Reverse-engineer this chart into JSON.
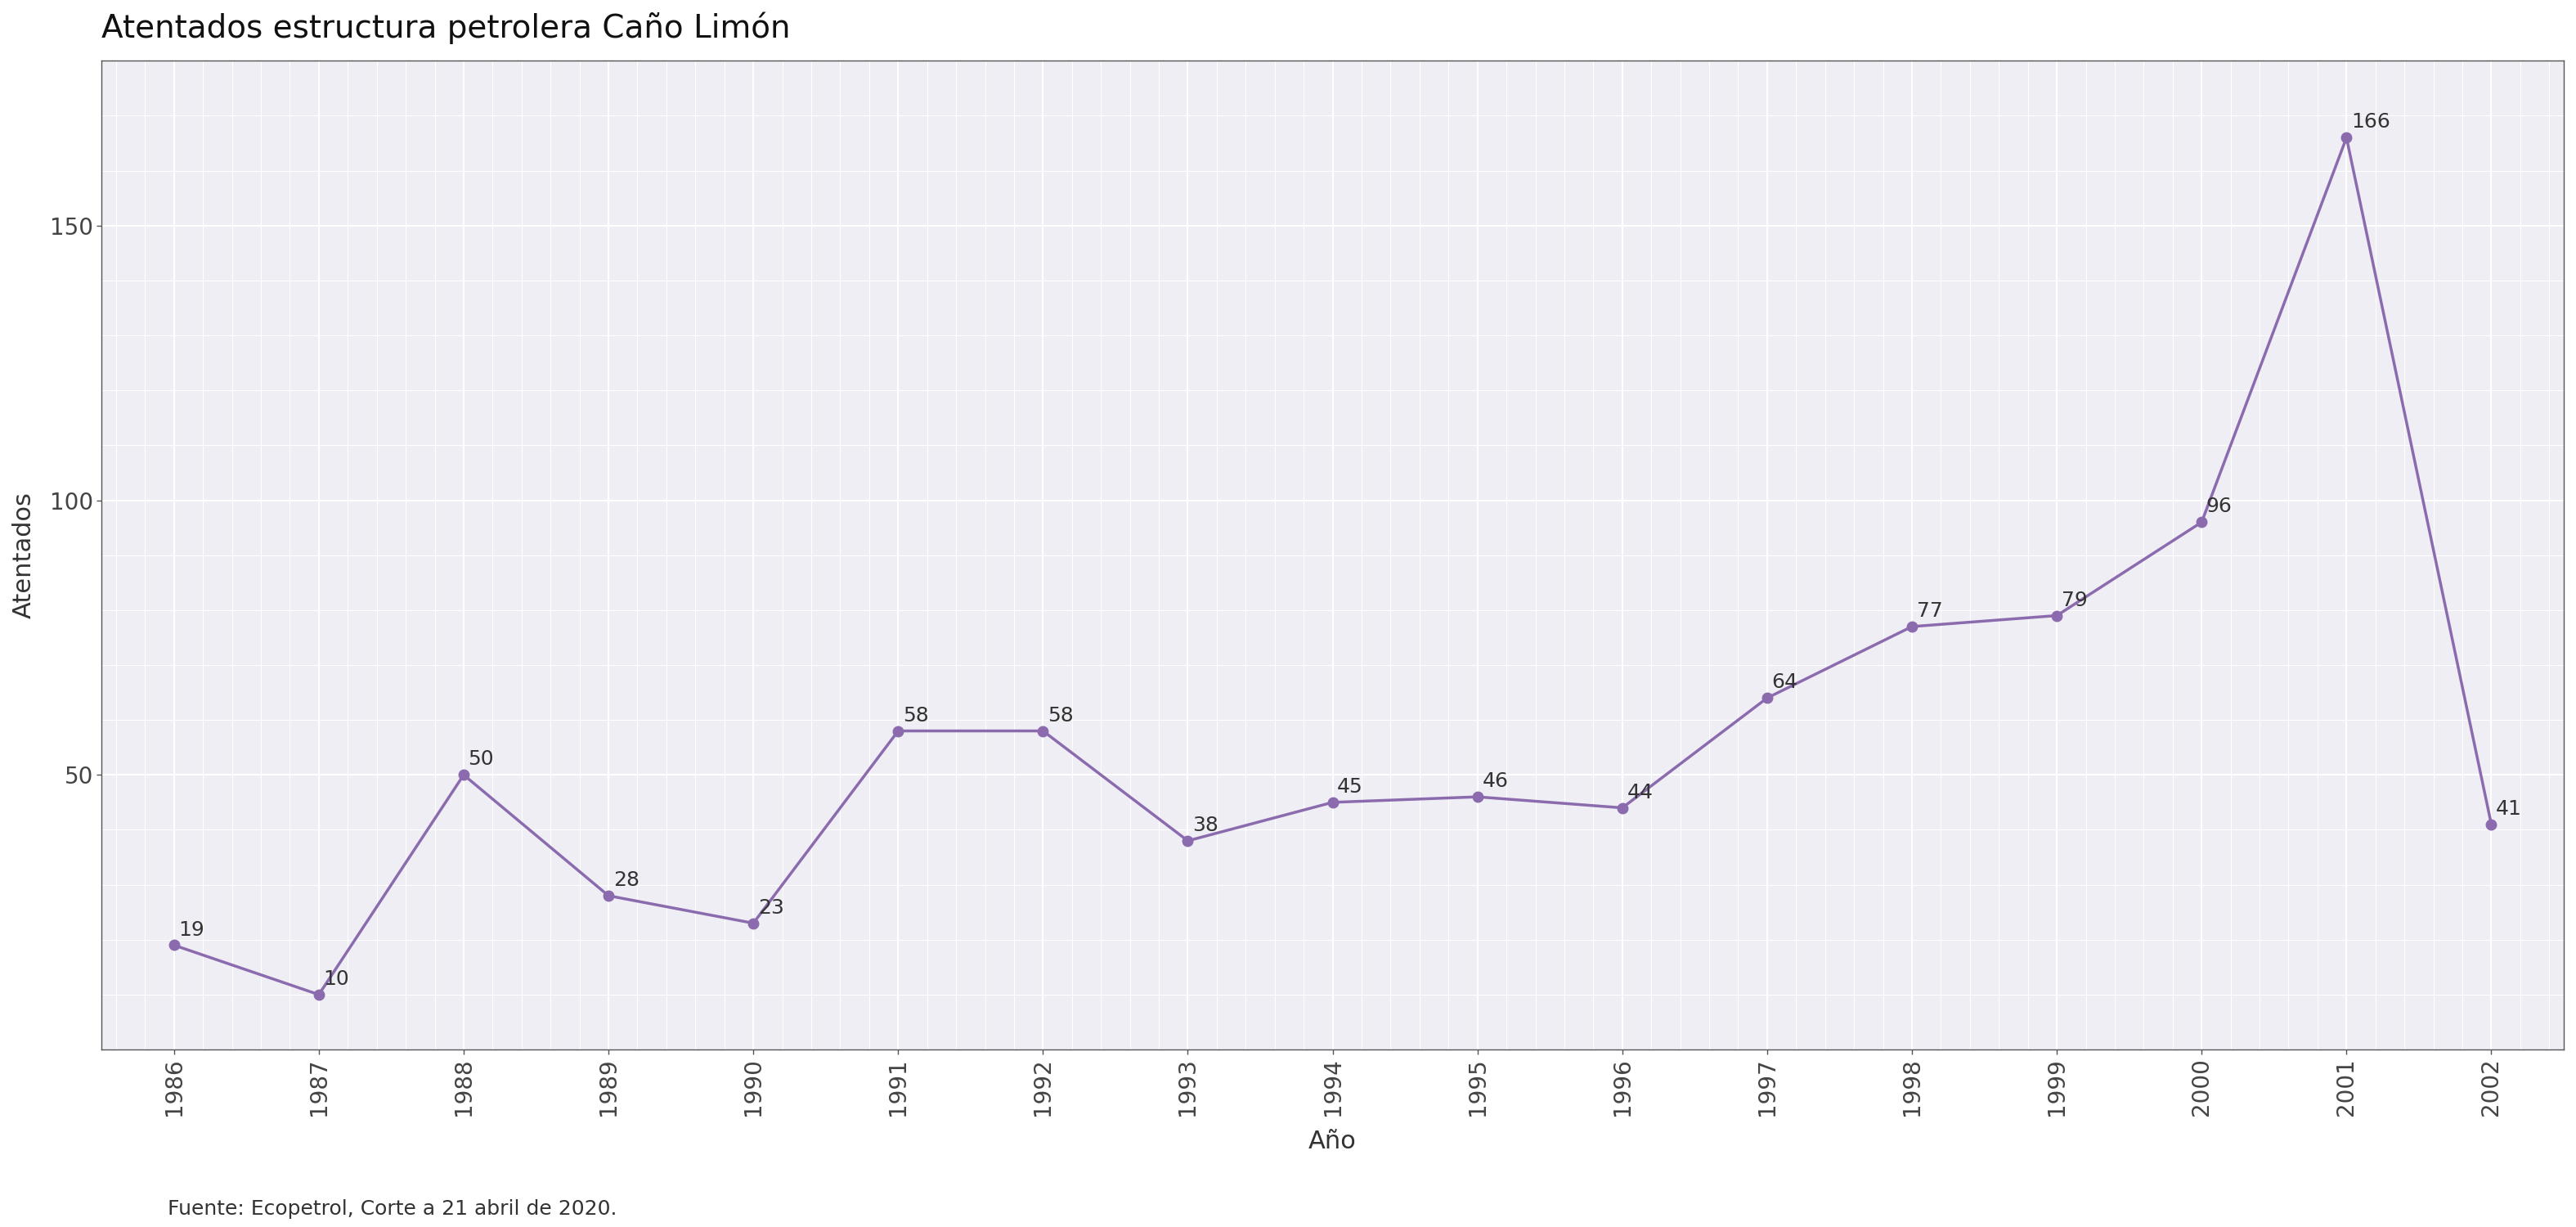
{
  "title": "Atentados estructura petrolera Caño Limón",
  "xlabel": "Año",
  "ylabel": "Atentados",
  "footer": "Fuente: Ecopetrol, Corte a 21 abril de 2020.",
  "years": [
    1986,
    1987,
    1988,
    1989,
    1990,
    1991,
    1992,
    1993,
    1994,
    1995,
    1996,
    1997,
    1998,
    1999,
    2000,
    2001,
    2002
  ],
  "values": [
    19,
    10,
    50,
    28,
    23,
    58,
    58,
    38,
    45,
    46,
    44,
    64,
    77,
    79,
    96,
    166,
    41
  ],
  "line_color": "#8b6bae",
  "marker_color": "#8b6bae",
  "bg_color": "#ffffff",
  "plot_bg_color": "#eeeef4",
  "grid_color": "#ffffff",
  "ylim": [
    0,
    180
  ],
  "yticks": [
    50,
    100,
    150
  ],
  "title_fontsize": 28,
  "axis_label_fontsize": 22,
  "tick_fontsize": 20,
  "annotation_fontsize": 18,
  "footer_fontsize": 18
}
